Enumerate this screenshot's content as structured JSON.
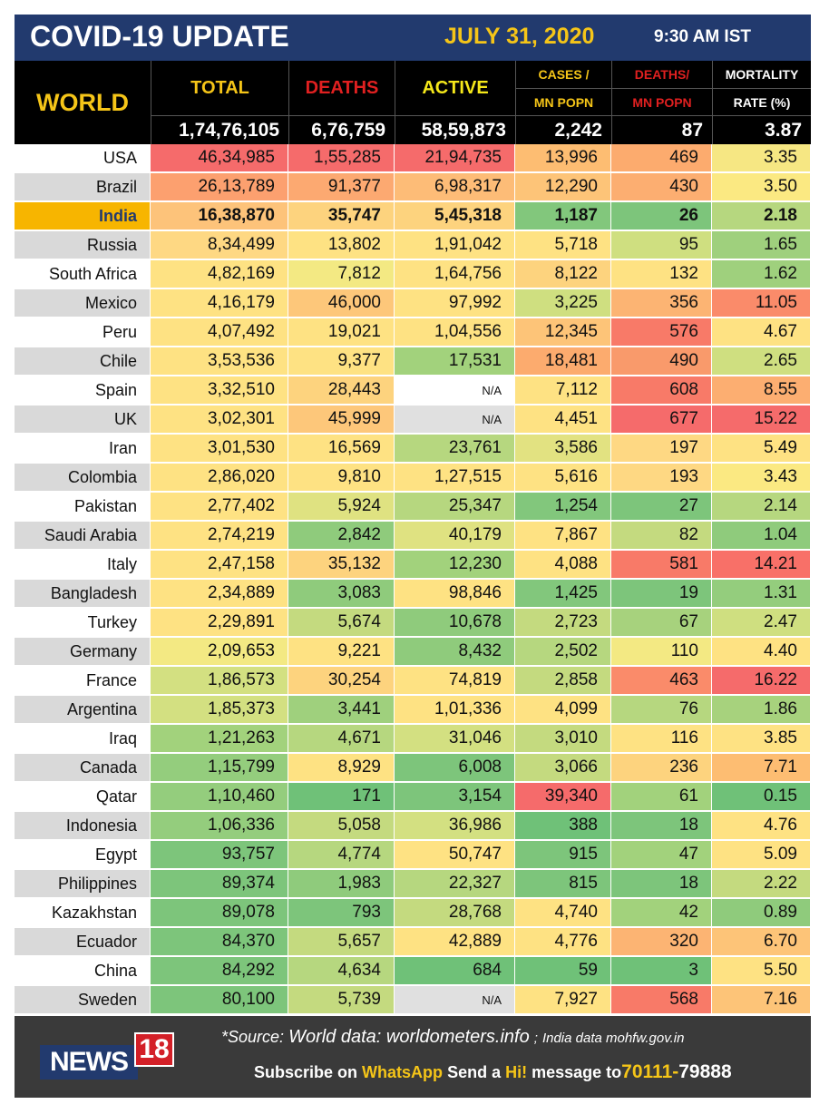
{
  "banner": {
    "title": "COVID-19 UPDATE",
    "date": "JULY 31, 2020",
    "time": "9:30 AM IST"
  },
  "header": {
    "world_label": "WORLD",
    "cols": [
      {
        "label": "TOTAL",
        "color": "#f5c518"
      },
      {
        "label": "DEATHS",
        "color": "#e02020"
      },
      {
        "label": "ACTIVE",
        "color": "#f5e81a"
      }
    ],
    "cases_line1": "CASES /",
    "cases_line2": "MN POPN",
    "deaths_line1": "DEATHS/",
    "deaths_line2": "MN POPN",
    "mortality_line1": "MORTALITY",
    "mortality_line2": "RATE (%)",
    "world_values": [
      "1,74,76,105",
      "6,76,759",
      "58,59,873",
      "2,242",
      "87",
      "3.87"
    ]
  },
  "rows": [
    {
      "country": "USA",
      "values": [
        "46,34,985",
        "1,55,285",
        "21,94,735",
        "13,996",
        "469",
        "3.35"
      ],
      "colors": [
        "#f56b6b",
        "#f56b6b",
        "#f56b6b",
        "#fdbd72",
        "#fcab6e",
        "#f6e783"
      ]
    },
    {
      "country": "Brazil",
      "values": [
        "26,13,789",
        "91,377",
        "6,98,317",
        "12,290",
        "430",
        "3.50"
      ],
      "colors": [
        "#fca06f",
        "#fca971",
        "#fdbc77",
        "#fdc478",
        "#fcae71",
        "#fbe982"
      ]
    },
    {
      "country": "India",
      "values": [
        "16,38,870",
        "35,747",
        "5,45,318",
        "1,187",
        "26",
        "2.18"
      ],
      "colors": [
        "#fdc37a",
        "#fdd37e",
        "#fdd37e",
        "#82c77c",
        "#7dc57b",
        "#b6d77f"
      ],
      "highlight": true
    },
    {
      "country": "Russia",
      "values": [
        "8,34,499",
        "13,802",
        "1,91,042",
        "5,718",
        "95",
        "1.65"
      ],
      "colors": [
        "#fed883",
        "#fee283",
        "#fee283",
        "#fee283",
        "#cfdf80",
        "#9fd07d"
      ]
    },
    {
      "country": "South Africa",
      "values": [
        "4,82,169",
        "7,812",
        "1,64,756",
        "8,122",
        "132",
        "1.62"
      ],
      "colors": [
        "#fee283",
        "#f3e983",
        "#fee283",
        "#fdd37e",
        "#fee283",
        "#9fd07d"
      ]
    },
    {
      "country": "Mexico",
      "values": [
        "4,16,179",
        "46,000",
        "97,992",
        "3,225",
        "356",
        "11.05"
      ],
      "colors": [
        "#fee283",
        "#fdc77a",
        "#fee283",
        "#cfdf80",
        "#fcb473",
        "#fa8b6a"
      ]
    },
    {
      "country": "Peru",
      "values": [
        "4,07,492",
        "19,021",
        "1,04,556",
        "12,345",
        "576",
        "4.67"
      ],
      "colors": [
        "#fee283",
        "#fee283",
        "#fee283",
        "#fdc478",
        "#f87a68",
        "#fee283"
      ]
    },
    {
      "country": "Chile",
      "values": [
        "3,53,536",
        "9,377",
        "17,531",
        "18,481",
        "490",
        "2.65"
      ],
      "colors": [
        "#fee283",
        "#fee283",
        "#a2d27c",
        "#fcab6e",
        "#f99a6b",
        "#cfdf80"
      ]
    },
    {
      "country": "Spain",
      "values": [
        "3,32,510",
        "28,443",
        "N/A",
        "7,112",
        "608",
        "8.55"
      ],
      "colors": [
        "#fee283",
        "#fdd37e",
        "#ffffff",
        "#fee283",
        "#f87a68",
        "#fcae71"
      ]
    },
    {
      "country": "UK",
      "values": [
        "3,02,301",
        "45,999",
        "N/A",
        "4,451",
        "677",
        "15.22"
      ],
      "colors": [
        "#fee283",
        "#fdc77a",
        "#e0e0e0",
        "#fee283",
        "#f56b6b",
        "#f56b6b"
      ]
    },
    {
      "country": "Iran",
      "values": [
        "3,01,530",
        "16,569",
        "23,761",
        "3,586",
        "197",
        "5.49"
      ],
      "colors": [
        "#fee283",
        "#fee283",
        "#b6d77f",
        "#e2e281",
        "#fed883",
        "#fee283"
      ]
    },
    {
      "country": "Colombia",
      "values": [
        "2,86,020",
        "9,810",
        "1,27,515",
        "5,616",
        "193",
        "3.43"
      ],
      "colors": [
        "#fee283",
        "#fee283",
        "#fee283",
        "#fee283",
        "#fed883",
        "#fbe982"
      ]
    },
    {
      "country": "Pakistan",
      "values": [
        "2,77,402",
        "5,924",
        "25,347",
        "1,254",
        "27",
        "2.14"
      ],
      "colors": [
        "#fee283",
        "#dfe281",
        "#b6d77f",
        "#82c77c",
        "#7dc57b",
        "#b6d77f"
      ]
    },
    {
      "country": "Saudi Arabia",
      "values": [
        "2,74,219",
        "2,842",
        "40,179",
        "7,867",
        "82",
        "1.04"
      ],
      "colors": [
        "#fee283",
        "#8fcb7c",
        "#dfe281",
        "#fee283",
        "#c4da7f",
        "#8fcb7c"
      ]
    },
    {
      "country": "Italy",
      "values": [
        "2,47,158",
        "35,132",
        "12,230",
        "4,088",
        "581",
        "14.21"
      ],
      "colors": [
        "#fee283",
        "#fdd37e",
        "#a2d27c",
        "#fee283",
        "#f87a68",
        "#f87068"
      ]
    },
    {
      "country": "Bangladesh",
      "values": [
        "2,34,889",
        "3,083",
        "98,846",
        "1,425",
        "19",
        "1.31"
      ],
      "colors": [
        "#fee283",
        "#8fcb7c",
        "#fee283",
        "#82c77c",
        "#7dc57b",
        "#94cd7d"
      ]
    },
    {
      "country": "Turkey",
      "values": [
        "2,29,891",
        "5,674",
        "10,678",
        "2,723",
        "67",
        "2.47"
      ],
      "colors": [
        "#fee283",
        "#c4da7f",
        "#8fcb7c",
        "#c4da7f",
        "#a7d27d",
        "#cfdf80"
      ]
    },
    {
      "country": "Germany",
      "values": [
        "2,09,653",
        "9,221",
        "8,432",
        "2,502",
        "110",
        "4.40"
      ],
      "colors": [
        "#f3e983",
        "#fee283",
        "#8fcb7c",
        "#b6d77f",
        "#f3e983",
        "#fee283"
      ]
    },
    {
      "country": "France",
      "values": [
        "1,86,573",
        "30,254",
        "74,819",
        "2,858",
        "463",
        "16.22"
      ],
      "colors": [
        "#d3e081",
        "#fdd37e",
        "#fee283",
        "#c4da7f",
        "#fa8b6a",
        "#f56b6b"
      ]
    },
    {
      "country": "Argentina",
      "values": [
        "1,85,373",
        "3,441",
        "1,01,336",
        "4,099",
        "76",
        "1.86"
      ],
      "colors": [
        "#d3e081",
        "#9fd07d",
        "#fee283",
        "#fee283",
        "#b6d77f",
        "#a7d27d"
      ]
    },
    {
      "country": "Iraq",
      "values": [
        "1,21,263",
        "4,671",
        "31,046",
        "3,010",
        "116",
        "3.85"
      ],
      "colors": [
        "#a2d27c",
        "#b6d77f",
        "#d3e081",
        "#c4da7f",
        "#fee283",
        "#fee283"
      ]
    },
    {
      "country": "Canada",
      "values": [
        "1,15,799",
        "8,929",
        "6,008",
        "3,066",
        "236",
        "7.71"
      ],
      "colors": [
        "#94cd7d",
        "#fee283",
        "#7dc57b",
        "#c4da7f",
        "#fdd37e",
        "#fdbd72"
      ]
    },
    {
      "country": "Qatar",
      "values": [
        "1,10,460",
        "171",
        "3,154",
        "39,340",
        "61",
        "0.15"
      ],
      "colors": [
        "#94cd7d",
        "#6fc178",
        "#7dc57b",
        "#f56b6b",
        "#a2d27c",
        "#6fc178"
      ]
    },
    {
      "country": "Indonesia",
      "values": [
        "1,06,336",
        "5,058",
        "36,986",
        "388",
        "18",
        "4.76"
      ],
      "colors": [
        "#94cd7d",
        "#c4da7f",
        "#d3e081",
        "#6fc178",
        "#7dc57b",
        "#fee283"
      ]
    },
    {
      "country": "Egypt",
      "values": [
        "93,757",
        "4,774",
        "50,747",
        "915",
        "47",
        "5.09"
      ],
      "colors": [
        "#7dc57b",
        "#b6d77f",
        "#fee283",
        "#7dc57b",
        "#a2d27c",
        "#fee283"
      ]
    },
    {
      "country": "Philippines",
      "values": [
        "89,374",
        "1,983",
        "22,327",
        "815",
        "18",
        "2.22"
      ],
      "colors": [
        "#7dc57b",
        "#8fcb7c",
        "#b6d77f",
        "#7dc57b",
        "#7dc57b",
        "#c4da7f"
      ]
    },
    {
      "country": "Kazakhstan",
      "values": [
        "89,078",
        "793",
        "28,768",
        "4,740",
        "42",
        "0.89"
      ],
      "colors": [
        "#7dc57b",
        "#7dc57b",
        "#c4da7f",
        "#fee283",
        "#a2d27c",
        "#8fcb7c"
      ]
    },
    {
      "country": "Ecuador",
      "values": [
        "84,370",
        "5,657",
        "42,889",
        "4,776",
        "320",
        "6.70"
      ],
      "colors": [
        "#7dc57b",
        "#c4da7f",
        "#fee283",
        "#fee283",
        "#fcb473",
        "#fdc478"
      ]
    },
    {
      "country": "China",
      "values": [
        "84,292",
        "4,634",
        "684",
        "59",
        "3",
        "5.50"
      ],
      "colors": [
        "#7dc57b",
        "#b6d77f",
        "#6fc178",
        "#6fc178",
        "#6fc178",
        "#fee283"
      ]
    },
    {
      "country": "Sweden",
      "values": [
        "80,100",
        "5,739",
        "N/A",
        "7,927",
        "568",
        "7.16"
      ],
      "colors": [
        "#7dc57b",
        "#c4da7f",
        "#e0e0e0",
        "#fee283",
        "#f87a68",
        "#fdc478"
      ]
    }
  ],
  "footer": {
    "logo_text": "NEWS",
    "logo_num": "18",
    "source_prefix": "*Source:",
    "source_world": "World data: worldometers.info",
    "source_sep": ";",
    "source_india": "India data mohfw.gov.in",
    "subscribe_a": "Subscribe on",
    "subscribe_whatsapp": "WhatsApp",
    "subscribe_b": "Send a",
    "subscribe_hi": "Hi!",
    "subscribe_c": "message to",
    "subscribe_num1": "70111-",
    "subscribe_num2": "79888"
  }
}
